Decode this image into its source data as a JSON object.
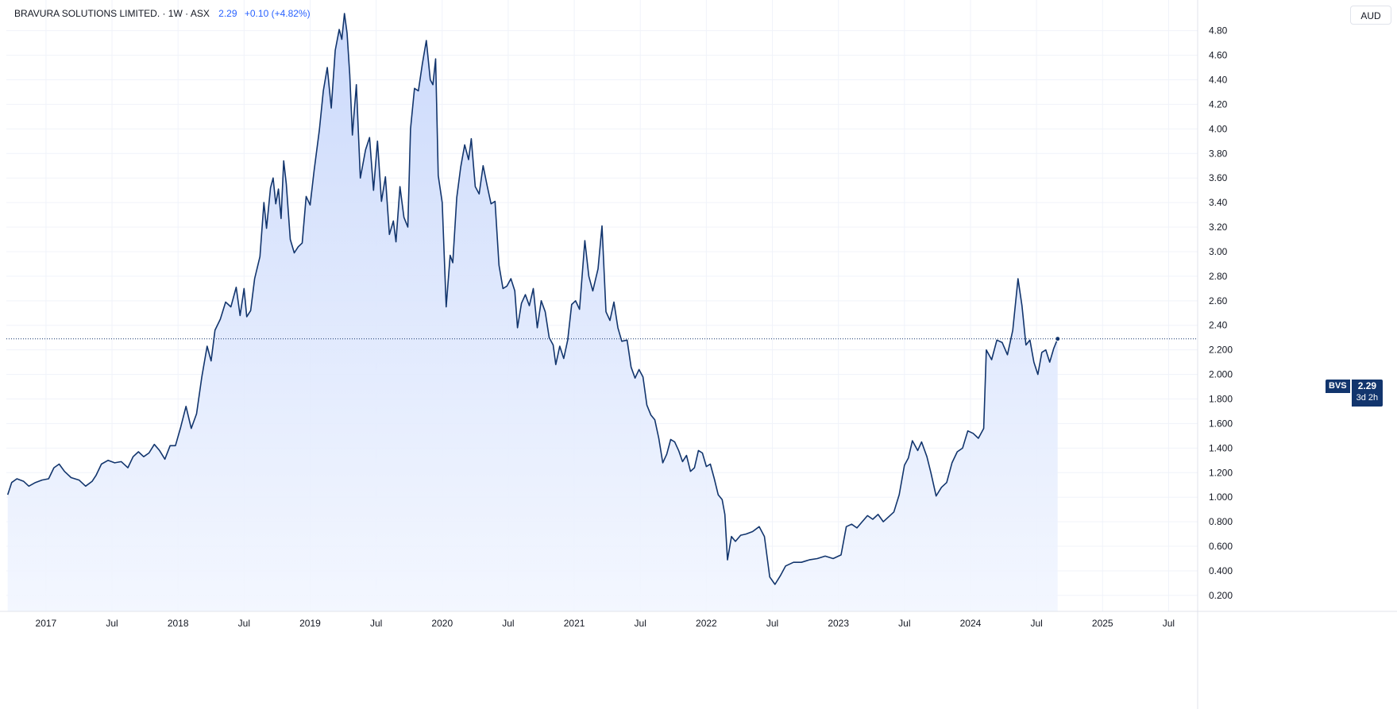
{
  "header": {
    "title": "BRAVURA SOLUTIONS LIMITED. · 1W · ASX",
    "last": "2.29",
    "change": "+0.10 (+4.82%)"
  },
  "currency_button": "AUD",
  "last_price_tag": {
    "symbol": "BVS",
    "price": "2.29",
    "countdown": "3d 2h"
  },
  "colors": {
    "line": "#12356d",
    "area_top": "#c9d8fb",
    "area_bottom": "#f2f6ff",
    "grid": "#f0f3fa",
    "axis_text": "#131722"
  },
  "chart_data": {
    "type": "area",
    "title": "BRAVURA SOLUTIONS LIMITED. · 1W · ASX",
    "xlabel": "",
    "ylabel": "",
    "ylim": [
      0.07,
      5.05
    ],
    "xlim": [
      2016.7,
      2025.72
    ],
    "y_ticks": [
      0.2,
      0.4,
      0.6,
      0.8,
      1.0,
      1.2,
      1.4,
      1.6,
      1.8,
      2.0,
      2.2,
      2.4,
      2.6,
      2.8,
      3.0,
      3.2,
      3.4,
      3.6,
      3.8,
      4.0,
      4.2,
      4.4,
      4.6,
      4.8
    ],
    "y_tick_labels": [
      "0.200",
      "0.400",
      "0.600",
      "0.800",
      "1.000",
      "1.200",
      "1.400",
      "1.600",
      "1.800",
      "2.000",
      "2.200",
      "2.40",
      "2.60",
      "2.80",
      "3.00",
      "3.20",
      "3.40",
      "3.60",
      "3.80",
      "4.00",
      "4.20",
      "4.40",
      "4.60",
      "4.80"
    ],
    "x_ticks": [
      {
        "t": 2017.0,
        "label": "2017"
      },
      {
        "t": 2017.5,
        "label": "Jul"
      },
      {
        "t": 2018.0,
        "label": "2018"
      },
      {
        "t": 2018.5,
        "label": "Jul"
      },
      {
        "t": 2019.0,
        "label": "2019"
      },
      {
        "t": 2019.5,
        "label": "Jul"
      },
      {
        "t": 2020.0,
        "label": "2020"
      },
      {
        "t": 2020.5,
        "label": "Jul"
      },
      {
        "t": 2021.0,
        "label": "2021"
      },
      {
        "t": 2021.5,
        "label": "Jul"
      },
      {
        "t": 2022.0,
        "label": "2022"
      },
      {
        "t": 2022.5,
        "label": "Jul"
      },
      {
        "t": 2023.0,
        "label": "2023"
      },
      {
        "t": 2023.5,
        "label": "Jul"
      },
      {
        "t": 2024.0,
        "label": "2024"
      },
      {
        "t": 2024.5,
        "label": "Jul"
      },
      {
        "t": 2025.0,
        "label": "2025"
      },
      {
        "t": 2025.5,
        "label": "Jul"
      }
    ],
    "grid": true,
    "last_value": 2.29,
    "series": [
      {
        "values": [
          [
            2016.71,
            1.02
          ],
          [
            2016.74,
            1.12
          ],
          [
            2016.78,
            1.15
          ],
          [
            2016.83,
            1.13
          ],
          [
            2016.87,
            1.09
          ],
          [
            2016.92,
            1.12
          ],
          [
            2016.97,
            1.14
          ],
          [
            2017.02,
            1.15
          ],
          [
            2017.06,
            1.24
          ],
          [
            2017.1,
            1.27
          ],
          [
            2017.14,
            1.21
          ],
          [
            2017.19,
            1.16
          ],
          [
            2017.25,
            1.14
          ],
          [
            2017.3,
            1.09
          ],
          [
            2017.35,
            1.13
          ],
          [
            2017.38,
            1.18
          ],
          [
            2017.42,
            1.27
          ],
          [
            2017.47,
            1.3
          ],
          [
            2017.52,
            1.28
          ],
          [
            2017.57,
            1.29
          ],
          [
            2017.62,
            1.24
          ],
          [
            2017.66,
            1.33
          ],
          [
            2017.7,
            1.37
          ],
          [
            2017.74,
            1.33
          ],
          [
            2017.78,
            1.36
          ],
          [
            2017.82,
            1.43
          ],
          [
            2017.86,
            1.38
          ],
          [
            2017.9,
            1.31
          ],
          [
            2017.94,
            1.42
          ],
          [
            2017.98,
            1.42
          ],
          [
            2018.02,
            1.57
          ],
          [
            2018.06,
            1.74
          ],
          [
            2018.1,
            1.56
          ],
          [
            2018.14,
            1.68
          ],
          [
            2018.18,
            1.98
          ],
          [
            2018.22,
            2.23
          ],
          [
            2018.25,
            2.11
          ],
          [
            2018.28,
            2.36
          ],
          [
            2018.32,
            2.45
          ],
          [
            2018.36,
            2.59
          ],
          [
            2018.4,
            2.55
          ],
          [
            2018.44,
            2.71
          ],
          [
            2018.47,
            2.48
          ],
          [
            2018.5,
            2.7
          ],
          [
            2018.52,
            2.47
          ],
          [
            2018.55,
            2.52
          ],
          [
            2018.58,
            2.78
          ],
          [
            2018.62,
            2.96
          ],
          [
            2018.65,
            3.4
          ],
          [
            2018.67,
            3.19
          ],
          [
            2018.7,
            3.52
          ],
          [
            2018.72,
            3.6
          ],
          [
            2018.74,
            3.39
          ],
          [
            2018.76,
            3.51
          ],
          [
            2018.78,
            3.27
          ],
          [
            2018.8,
            3.74
          ],
          [
            2018.82,
            3.55
          ],
          [
            2018.85,
            3.1
          ],
          [
            2018.88,
            2.99
          ],
          [
            2018.91,
            3.04
          ],
          [
            2018.94,
            3.07
          ],
          [
            2018.97,
            3.45
          ],
          [
            2019.0,
            3.38
          ],
          [
            2019.03,
            3.66
          ],
          [
            2019.07,
            3.99
          ],
          [
            2019.1,
            4.31
          ],
          [
            2019.13,
            4.5
          ],
          [
            2019.16,
            4.17
          ],
          [
            2019.19,
            4.64
          ],
          [
            2019.22,
            4.81
          ],
          [
            2019.24,
            4.73
          ],
          [
            2019.26,
            4.94
          ],
          [
            2019.28,
            4.78
          ],
          [
            2019.3,
            4.44
          ],
          [
            2019.32,
            3.95
          ],
          [
            2019.35,
            4.36
          ],
          [
            2019.38,
            3.6
          ],
          [
            2019.42,
            3.83
          ],
          [
            2019.45,
            3.93
          ],
          [
            2019.48,
            3.5
          ],
          [
            2019.51,
            3.9
          ],
          [
            2019.54,
            3.41
          ],
          [
            2019.57,
            3.61
          ],
          [
            2019.6,
            3.14
          ],
          [
            2019.63,
            3.25
          ],
          [
            2019.65,
            3.08
          ],
          [
            2019.68,
            3.53
          ],
          [
            2019.71,
            3.28
          ],
          [
            2019.74,
            3.2
          ],
          [
            2019.76,
            4.0
          ],
          [
            2019.79,
            4.33
          ],
          [
            2019.82,
            4.31
          ],
          [
            2019.85,
            4.53
          ],
          [
            2019.88,
            4.72
          ],
          [
            2019.91,
            4.4
          ],
          [
            2019.93,
            4.36
          ],
          [
            2019.95,
            4.57
          ],
          [
            2019.97,
            3.62
          ],
          [
            2020.0,
            3.4
          ],
          [
            2020.03,
            2.55
          ],
          [
            2020.06,
            2.97
          ],
          [
            2020.08,
            2.91
          ],
          [
            2020.11,
            3.44
          ],
          [
            2020.14,
            3.69
          ],
          [
            2020.17,
            3.87
          ],
          [
            2020.2,
            3.75
          ],
          [
            2020.22,
            3.92
          ],
          [
            2020.25,
            3.53
          ],
          [
            2020.28,
            3.47
          ],
          [
            2020.31,
            3.7
          ],
          [
            2020.34,
            3.54
          ],
          [
            2020.37,
            3.39
          ],
          [
            2020.4,
            3.41
          ],
          [
            2020.43,
            2.89
          ],
          [
            2020.46,
            2.7
          ],
          [
            2020.49,
            2.72
          ],
          [
            2020.52,
            2.78
          ],
          [
            2020.55,
            2.68
          ],
          [
            2020.57,
            2.38
          ],
          [
            2020.6,
            2.58
          ],
          [
            2020.63,
            2.65
          ],
          [
            2020.66,
            2.56
          ],
          [
            2020.69,
            2.7
          ],
          [
            2020.72,
            2.38
          ],
          [
            2020.75,
            2.6
          ],
          [
            2020.78,
            2.51
          ],
          [
            2020.81,
            2.3
          ],
          [
            2020.84,
            2.24
          ],
          [
            2020.86,
            2.08
          ],
          [
            2020.89,
            2.23
          ],
          [
            2020.92,
            2.13
          ],
          [
            2020.95,
            2.28
          ],
          [
            2020.98,
            2.57
          ],
          [
            2021.01,
            2.6
          ],
          [
            2021.04,
            2.53
          ],
          [
            2021.08,
            3.09
          ],
          [
            2021.11,
            2.8
          ],
          [
            2021.14,
            2.68
          ],
          [
            2021.18,
            2.86
          ],
          [
            2021.21,
            3.21
          ],
          [
            2021.24,
            2.51
          ],
          [
            2021.27,
            2.44
          ],
          [
            2021.3,
            2.59
          ],
          [
            2021.33,
            2.38
          ],
          [
            2021.36,
            2.27
          ],
          [
            2021.4,
            2.28
          ],
          [
            2021.43,
            2.06
          ],
          [
            2021.46,
            1.97
          ],
          [
            2021.49,
            2.04
          ],
          [
            2021.52,
            1.98
          ],
          [
            2021.55,
            1.75
          ],
          [
            2021.58,
            1.67
          ],
          [
            2021.61,
            1.63
          ],
          [
            2021.64,
            1.48
          ],
          [
            2021.67,
            1.28
          ],
          [
            2021.7,
            1.35
          ],
          [
            2021.73,
            1.47
          ],
          [
            2021.76,
            1.45
          ],
          [
            2021.79,
            1.38
          ],
          [
            2021.82,
            1.29
          ],
          [
            2021.85,
            1.34
          ],
          [
            2021.88,
            1.21
          ],
          [
            2021.91,
            1.24
          ],
          [
            2021.94,
            1.38
          ],
          [
            2021.97,
            1.36
          ],
          [
            2022.0,
            1.25
          ],
          [
            2022.03,
            1.27
          ],
          [
            2022.06,
            1.15
          ],
          [
            2022.09,
            1.02
          ],
          [
            2022.12,
            0.98
          ],
          [
            2022.14,
            0.86
          ],
          [
            2022.16,
            0.49
          ],
          [
            2022.19,
            0.68
          ],
          [
            2022.22,
            0.64
          ],
          [
            2022.26,
            0.69
          ],
          [
            2022.3,
            0.7
          ],
          [
            2022.35,
            0.72
          ],
          [
            2022.4,
            0.76
          ],
          [
            2022.44,
            0.68
          ],
          [
            2022.48,
            0.35
          ],
          [
            2022.52,
            0.29
          ],
          [
            2022.56,
            0.36
          ],
          [
            2022.6,
            0.44
          ],
          [
            2022.66,
            0.47
          ],
          [
            2022.72,
            0.47
          ],
          [
            2022.78,
            0.49
          ],
          [
            2022.84,
            0.5
          ],
          [
            2022.9,
            0.52
          ],
          [
            2022.96,
            0.5
          ],
          [
            2023.02,
            0.53
          ],
          [
            2023.06,
            0.76
          ],
          [
            2023.1,
            0.78
          ],
          [
            2023.14,
            0.75
          ],
          [
            2023.18,
            0.8
          ],
          [
            2023.22,
            0.85
          ],
          [
            2023.26,
            0.82
          ],
          [
            2023.3,
            0.86
          ],
          [
            2023.34,
            0.8
          ],
          [
            2023.38,
            0.84
          ],
          [
            2023.42,
            0.88
          ],
          [
            2023.46,
            1.02
          ],
          [
            2023.5,
            1.26
          ],
          [
            2023.53,
            1.32
          ],
          [
            2023.56,
            1.46
          ],
          [
            2023.6,
            1.38
          ],
          [
            2023.63,
            1.45
          ],
          [
            2023.67,
            1.33
          ],
          [
            2023.7,
            1.2
          ],
          [
            2023.74,
            1.01
          ],
          [
            2023.78,
            1.08
          ],
          [
            2023.82,
            1.12
          ],
          [
            2023.86,
            1.28
          ],
          [
            2023.9,
            1.37
          ],
          [
            2023.94,
            1.4
          ],
          [
            2023.98,
            1.54
          ],
          [
            2024.02,
            1.52
          ],
          [
            2024.06,
            1.48
          ],
          [
            2024.1,
            1.56
          ],
          [
            2024.12,
            2.2
          ],
          [
            2024.16,
            2.12
          ],
          [
            2024.2,
            2.28
          ],
          [
            2024.24,
            2.26
          ],
          [
            2024.28,
            2.16
          ],
          [
            2024.32,
            2.36
          ],
          [
            2024.36,
            2.78
          ],
          [
            2024.39,
            2.56
          ],
          [
            2024.42,
            2.24
          ],
          [
            2024.45,
            2.28
          ],
          [
            2024.48,
            2.1
          ],
          [
            2024.51,
            2.0
          ],
          [
            2024.54,
            2.18
          ],
          [
            2024.57,
            2.2
          ],
          [
            2024.6,
            2.1
          ],
          [
            2024.63,
            2.21
          ],
          [
            2024.66,
            2.29
          ]
        ]
      }
    ]
  }
}
